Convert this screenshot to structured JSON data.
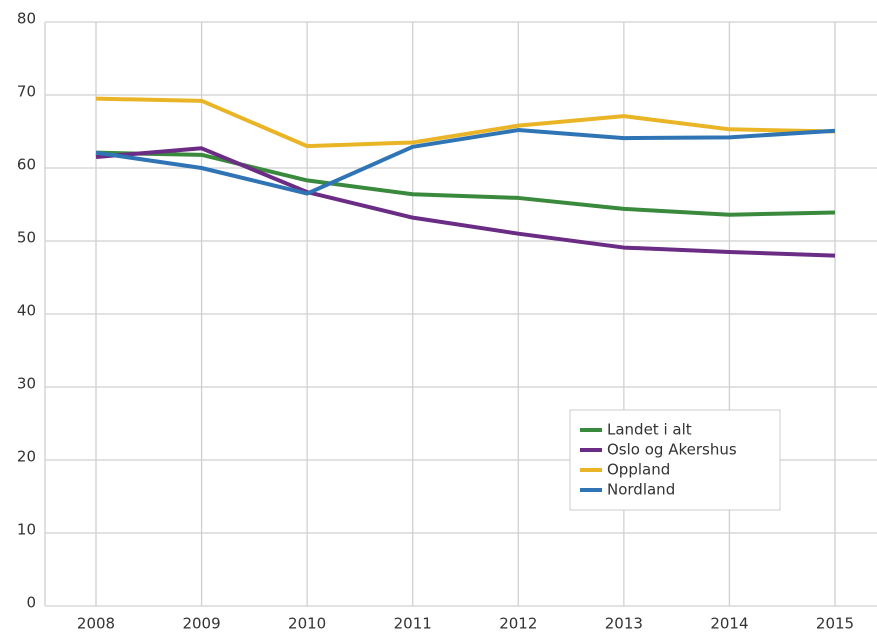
{
  "chart_data": {
    "type": "line",
    "categories": [
      "2008",
      "2009",
      "2010",
      "2011",
      "2012",
      "2013",
      "2014",
      "2015"
    ],
    "series": [
      {
        "name": "Landet i alt",
        "color": "#3a8a3e",
        "values": [
          62.1,
          61.8,
          58.3,
          56.4,
          55.9,
          54.4,
          53.6,
          53.9
        ]
      },
      {
        "name": "Oslo og Akershus",
        "color": "#6a2c84",
        "values": [
          61.5,
          62.7,
          56.7,
          53.2,
          51.0,
          49.1,
          48.5,
          48.0
        ]
      },
      {
        "name": "Oppland",
        "color": "#e9b527",
        "values": [
          69.5,
          69.2,
          63.0,
          63.5,
          65.8,
          67.1,
          65.3,
          65.0
        ]
      },
      {
        "name": "Nordland",
        "color": "#2f74b5",
        "values": [
          62.1,
          60.0,
          56.5,
          62.9,
          65.2,
          64.1,
          64.2,
          65.1
        ]
      }
    ],
    "ylim": [
      0,
      80
    ],
    "yticks": [
      0,
      10,
      20,
      30,
      40,
      50,
      60,
      70,
      80
    ],
    "grid": true,
    "legend": "lower right"
  }
}
